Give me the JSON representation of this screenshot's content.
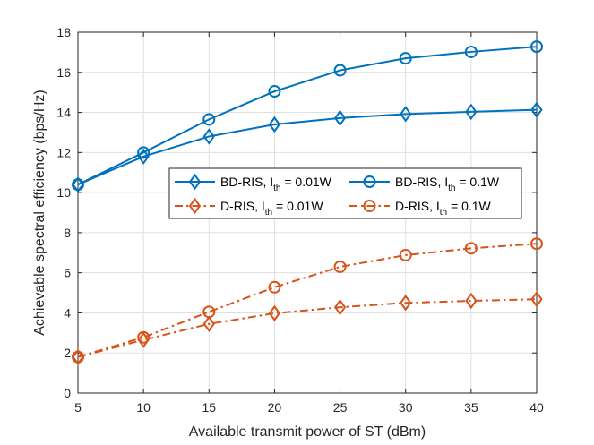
{
  "chart_data": {
    "type": "line",
    "title": "",
    "xlabel": "Available transmit power of ST (dBm)",
    "ylabel": "Achievable spectral efficiency (bps/Hz)",
    "xlim": [
      5,
      40
    ],
    "ylim": [
      0,
      18
    ],
    "x_ticks": [
      5,
      10,
      15,
      20,
      25,
      30,
      35,
      40
    ],
    "y_ticks": [
      0,
      2,
      4,
      6,
      8,
      10,
      12,
      14,
      16,
      18
    ],
    "grid": true,
    "legend_placement": "center-left, 2 columns",
    "x": [
      5,
      10,
      15,
      20,
      25,
      30,
      35,
      40
    ],
    "series": [
      {
        "name": "BD-RIS, I_th = 0.01W",
        "legend_main": "BD-RIS, I",
        "legend_sub": "th",
        "legend_tail": " = 0.01W",
        "color": "#0072BD",
        "line": "solid",
        "marker": "diamond",
        "values": [
          10.4,
          11.8,
          12.8,
          13.4,
          13.72,
          13.92,
          14.03,
          14.13
        ]
      },
      {
        "name": "BD-RIS, I_th = 0.1W",
        "legend_main": "BD-RIS, I",
        "legend_sub": "th",
        "legend_tail": " = 0.1W",
        "color": "#0072BD",
        "line": "solid",
        "marker": "circle",
        "values": [
          10.4,
          12.0,
          13.65,
          15.05,
          16.1,
          16.7,
          17.02,
          17.28
        ]
      },
      {
        "name": "D-RIS, I_th = 0.01W",
        "legend_main": "D-RIS, I",
        "legend_sub": "th",
        "legend_tail": " = 0.01W",
        "color": "#D95319",
        "line": "dashdot",
        "marker": "diamond",
        "values": [
          1.8,
          2.65,
          3.45,
          3.98,
          4.28,
          4.5,
          4.6,
          4.68
        ]
      },
      {
        "name": "D-RIS, I_th = 0.1W",
        "legend_main": "D-RIS, I",
        "legend_sub": "th",
        "legend_tail": " = 0.1W",
        "color": "#D95319",
        "line": "dashdot",
        "marker": "circle",
        "values": [
          1.8,
          2.78,
          4.05,
          5.28,
          6.3,
          6.88,
          7.22,
          7.45
        ]
      }
    ]
  }
}
